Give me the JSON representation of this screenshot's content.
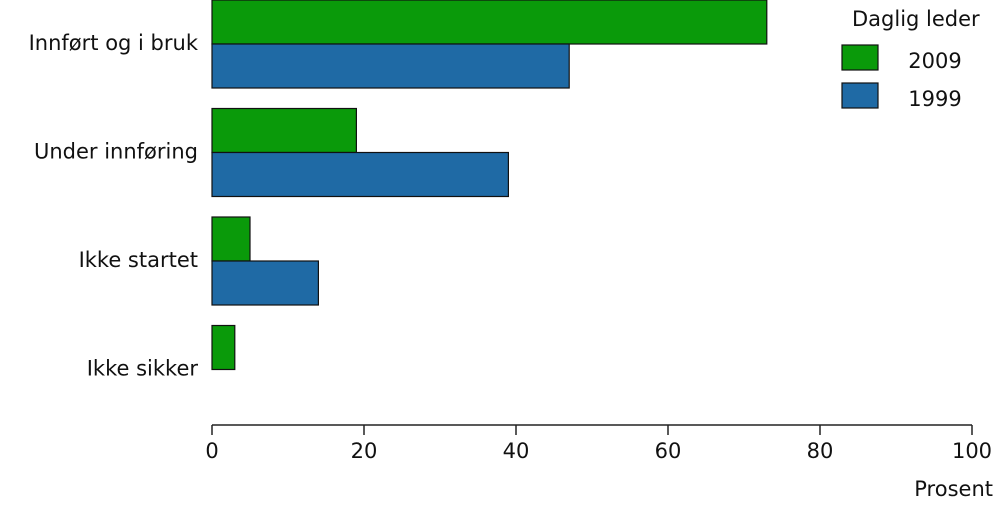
{
  "chart_data": {
    "type": "hbar",
    "x_label": "Prosent",
    "legend_title": "Daglig leder",
    "categories": [
      "Innført og i bruk",
      "Under innføring",
      "Ikke startet",
      "Ikke sikker"
    ],
    "series": [
      {
        "name": "2009",
        "color": "#0a9a0a",
        "values": [
          73,
          19,
          5,
          3
        ]
      },
      {
        "name": "1999",
        "color": "#1f6aa5",
        "values": [
          47,
          39,
          14,
          null
        ]
      }
    ],
    "xlim": [
      0,
      100
    ],
    "xticks": [
      0,
      20,
      40,
      60,
      80,
      100
    ]
  }
}
